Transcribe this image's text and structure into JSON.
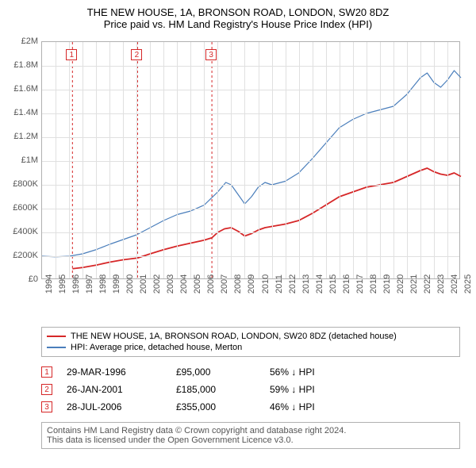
{
  "title": {
    "line1": "THE NEW HOUSE, 1A, BRONSON ROAD, LONDON, SW20 8DZ",
    "line2": "Price paid vs. HM Land Registry's House Price Index (HPI)",
    "fontsize": 13
  },
  "chart": {
    "type": "line",
    "x_axis": {
      "min": 1994,
      "max": 2025,
      "tick_step": 1,
      "tick_labels": [
        "1994",
        "1995",
        "1996",
        "1997",
        "1998",
        "1999",
        "2000",
        "2001",
        "2002",
        "2003",
        "2004",
        "2005",
        "2006",
        "2007",
        "2008",
        "2009",
        "2010",
        "2011",
        "2012",
        "2013",
        "2014",
        "2015",
        "2016",
        "2017",
        "2018",
        "2019",
        "2020",
        "2021",
        "2022",
        "2023",
        "2024",
        "2025"
      ],
      "label_fontsize": 11,
      "label_rotation": -90
    },
    "y_axis": {
      "min": 0,
      "max": 2000000,
      "tick_step": 200000,
      "tick_labels": [
        "£0",
        "£200K",
        "£400K",
        "£600K",
        "£800K",
        "£1M",
        "£1.2M",
        "£1.4M",
        "£1.6M",
        "£1.8M",
        "£2M"
      ],
      "label_fontsize": 11
    },
    "grid_color": "#e0e0e0",
    "border_color": "#b0b0b0",
    "background_color": "#ffffff",
    "series": [
      {
        "name": "price_paid",
        "label": "THE NEW HOUSE, 1A, BRONSON ROAD, LONDON, SW20 8DZ (detached house)",
        "color": "#d62728",
        "line_width": 1.8,
        "points": [
          [
            1996.25,
            95000
          ],
          [
            1997,
            105000
          ],
          [
            1998,
            125000
          ],
          [
            1999,
            150000
          ],
          [
            2000,
            170000
          ],
          [
            2001.07,
            185000
          ],
          [
            2002,
            220000
          ],
          [
            2003,
            255000
          ],
          [
            2004,
            285000
          ],
          [
            2005,
            310000
          ],
          [
            2006,
            335000
          ],
          [
            2006.57,
            355000
          ],
          [
            2007,
            400000
          ],
          [
            2007.5,
            430000
          ],
          [
            2008,
            440000
          ],
          [
            2008.5,
            410000
          ],
          [
            2009,
            370000
          ],
          [
            2009.5,
            390000
          ],
          [
            2010,
            420000
          ],
          [
            2010.5,
            440000
          ],
          [
            2011,
            450000
          ],
          [
            2012,
            470000
          ],
          [
            2013,
            500000
          ],
          [
            2014,
            560000
          ],
          [
            2015,
            630000
          ],
          [
            2016,
            700000
          ],
          [
            2017,
            740000
          ],
          [
            2018,
            780000
          ],
          [
            2019,
            800000
          ],
          [
            2020,
            820000
          ],
          [
            2021,
            870000
          ],
          [
            2022,
            920000
          ],
          [
            2022.5,
            940000
          ],
          [
            2023,
            910000
          ],
          [
            2023.5,
            890000
          ],
          [
            2024,
            880000
          ],
          [
            2024.5,
            900000
          ],
          [
            2025,
            870000
          ]
        ]
      },
      {
        "name": "hpi",
        "label": "HPI: Average price, detached house, Merton",
        "color": "#4a7ebb",
        "line_width": 1.2,
        "points": [
          [
            1994,
            200000
          ],
          [
            1995,
            195000
          ],
          [
            1996,
            200000
          ],
          [
            1997,
            220000
          ],
          [
            1998,
            255000
          ],
          [
            1999,
            300000
          ],
          [
            2000,
            340000
          ],
          [
            2001,
            380000
          ],
          [
            2002,
            440000
          ],
          [
            2003,
            500000
          ],
          [
            2004,
            550000
          ],
          [
            2005,
            580000
          ],
          [
            2006,
            630000
          ],
          [
            2007,
            740000
          ],
          [
            2007.6,
            820000
          ],
          [
            2008,
            800000
          ],
          [
            2008.5,
            720000
          ],
          [
            2009,
            640000
          ],
          [
            2009.5,
            700000
          ],
          [
            2010,
            780000
          ],
          [
            2010.5,
            820000
          ],
          [
            2011,
            800000
          ],
          [
            2012,
            830000
          ],
          [
            2013,
            900000
          ],
          [
            2014,
            1020000
          ],
          [
            2015,
            1150000
          ],
          [
            2016,
            1280000
          ],
          [
            2017,
            1350000
          ],
          [
            2018,
            1400000
          ],
          [
            2019,
            1430000
          ],
          [
            2020,
            1460000
          ],
          [
            2021,
            1560000
          ],
          [
            2022,
            1700000
          ],
          [
            2022.5,
            1740000
          ],
          [
            2023,
            1660000
          ],
          [
            2023.5,
            1620000
          ],
          [
            2024,
            1680000
          ],
          [
            2024.5,
            1760000
          ],
          [
            2025,
            1700000
          ]
        ]
      }
    ],
    "markers": [
      {
        "n": "1",
        "x": 1996.25,
        "color": "#d62728"
      },
      {
        "n": "2",
        "x": 2001.07,
        "color": "#d62728"
      },
      {
        "n": "3",
        "x": 2006.57,
        "color": "#d62728"
      }
    ]
  },
  "legend": {
    "border_color": "#b0b0b0",
    "fontsize": 11
  },
  "marker_table": [
    {
      "n": "1",
      "date": "29-MAR-1996",
      "price": "£95,000",
      "delta": "56% ↓ HPI"
    },
    {
      "n": "2",
      "date": "26-JAN-2001",
      "price": "£185,000",
      "delta": "59% ↓ HPI"
    },
    {
      "n": "3",
      "date": "28-JUL-2006",
      "price": "£355,000",
      "delta": "46% ↓ HPI"
    }
  ],
  "footer": {
    "line1": "Contains HM Land Registry data © Crown copyright and database right 2024.",
    "line2": "This data is licensed under the Open Government Licence v3.0.",
    "fontsize": 11,
    "border_color": "#b0b0b0",
    "text_color": "#555555"
  }
}
